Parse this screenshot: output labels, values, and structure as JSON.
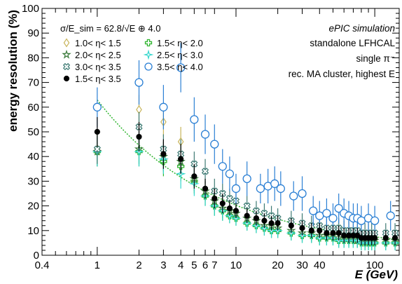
{
  "chart_data": {
    "type": "scatter",
    "xlabel": "E (GeV)",
    "ylabel": "energy resolution (%)",
    "xscale": "log",
    "xlim": [
      0.4,
      150
    ],
    "ylim": [
      0,
      100
    ],
    "xticks": [
      "0.4",
      "1",
      "2",
      "3",
      "4",
      "5",
      "6",
      "7",
      "10",
      "20",
      "30",
      "40",
      "100"
    ],
    "yticks": [
      "0",
      "10",
      "20",
      "30",
      "40",
      "50",
      "60",
      "70",
      "80",
      "90",
      "100"
    ],
    "fit_label": "σ/E_sim = 62.8/√E ⊕ 4.0",
    "annotations": [
      "ePIC simulation",
      "standalone LFHCAL",
      "single π⁻",
      "rec. MA cluster, highest E"
    ],
    "legend_position": "top-left",
    "series": [
      {
        "name": "1.0< η< 1.5",
        "color": "#c8b45a",
        "marker": "diamond-open",
        "x": [
          1,
          2,
          3,
          4
        ],
        "y": [
          43,
          59,
          54,
          46
        ],
        "err": [
          6,
          6,
          6,
          6
        ]
      },
      {
        "name": "1.5< η< 2.0",
        "color": "#2fb52f",
        "marker": "cross-open",
        "x": [
          1,
          2,
          3,
          4,
          5,
          6,
          7,
          8,
          9,
          10,
          12,
          14,
          16,
          18,
          20,
          25,
          30,
          35,
          40,
          45,
          50,
          55,
          60,
          65,
          70,
          75,
          80,
          85,
          90,
          95,
          100,
          120,
          140
        ],
        "y": [
          42,
          42,
          38,
          36,
          30,
          24,
          20,
          18,
          16,
          15,
          13,
          12,
          11,
          10,
          10,
          9,
          8,
          8,
          7,
          7,
          7,
          6,
          6,
          6,
          6,
          6,
          5,
          5,
          5,
          5,
          5,
          5,
          5
        ],
        "err": [
          6,
          6,
          6,
          6,
          5,
          4,
          4,
          4,
          3,
          3,
          3,
          3,
          3,
          3,
          3,
          3,
          3,
          3,
          3,
          3,
          3,
          3,
          3,
          3,
          3,
          3,
          3,
          3,
          3,
          3,
          3,
          3,
          3
        ]
      },
      {
        "name": "2.0< η< 2.5",
        "color": "#3a7a3a",
        "marker": "star-open",
        "x": [
          1,
          2,
          3,
          4,
          5,
          6,
          7,
          8,
          9,
          10,
          12,
          14,
          16,
          18,
          20,
          25,
          30,
          35,
          40,
          45,
          50,
          55,
          60,
          65,
          70,
          75,
          80,
          85,
          90,
          95,
          100,
          120,
          140
        ],
        "y": [
          42,
          43,
          40,
          38,
          31,
          26,
          22,
          19,
          18,
          17,
          15,
          14,
          12,
          12,
          11,
          10,
          9,
          9,
          8,
          8,
          8,
          7,
          7,
          7,
          7,
          6,
          6,
          6,
          6,
          6,
          6,
          6,
          6
        ],
        "err": [
          6,
          6,
          6,
          6,
          5,
          4,
          4,
          4,
          3,
          3,
          3,
          3,
          3,
          3,
          3,
          3,
          3,
          3,
          3,
          3,
          3,
          3,
          3,
          3,
          3,
          3,
          3,
          3,
          3,
          3,
          3,
          3,
          3
        ]
      },
      {
        "name": "2.5< η< 3.0",
        "color": "#33d6cc",
        "marker": "star4-open",
        "x": [
          1,
          2,
          3,
          4,
          5,
          6,
          7,
          8,
          9,
          10,
          12,
          14,
          16,
          18,
          20,
          25,
          30,
          35,
          40,
          45,
          50,
          55,
          60,
          65,
          70,
          75,
          80,
          85,
          90,
          95,
          100,
          120,
          140
        ],
        "y": [
          42,
          42,
          39,
          33,
          29,
          24,
          20,
          18,
          16,
          15,
          13,
          12,
          11,
          10,
          10,
          9,
          8,
          8,
          7,
          7,
          7,
          6,
          6,
          6,
          6,
          6,
          5,
          5,
          5,
          5,
          5,
          5,
          5
        ],
        "err": [
          6,
          6,
          6,
          6,
          5,
          4,
          4,
          4,
          3,
          3,
          3,
          3,
          3,
          3,
          3,
          3,
          3,
          3,
          3,
          3,
          3,
          3,
          3,
          3,
          3,
          3,
          3,
          3,
          3,
          3,
          3,
          3,
          3
        ]
      },
      {
        "name": "3.0< η< 3.5",
        "color": "#3d7a73",
        "marker": "x-open",
        "x": [
          1,
          2,
          3,
          4,
          5,
          6,
          7,
          8,
          9,
          10,
          12,
          14,
          16,
          18,
          20,
          25,
          30,
          35,
          40,
          45,
          50,
          55,
          60,
          65,
          70,
          75,
          80,
          85,
          90,
          95,
          100,
          120,
          140
        ],
        "y": [
          43,
          52,
          43,
          41,
          37,
          34,
          26,
          25,
          23,
          22,
          20,
          18,
          17,
          16,
          15,
          14,
          13,
          12,
          12,
          11,
          11,
          11,
          10,
          10,
          10,
          10,
          9,
          9,
          9,
          9,
          9,
          9,
          9
        ],
        "err": [
          6,
          6,
          6,
          6,
          5,
          5,
          5,
          4,
          4,
          4,
          4,
          4,
          4,
          4,
          4,
          4,
          4,
          4,
          4,
          4,
          4,
          4,
          4,
          4,
          4,
          4,
          4,
          4,
          4,
          4,
          4,
          4,
          4
        ]
      },
      {
        "name": "3.5< η< 4.0",
        "color": "#2a7fd4",
        "marker": "circle-open",
        "x": [
          1,
          2,
          3,
          4,
          5,
          6,
          7,
          8,
          9,
          10,
          12,
          15,
          17,
          19,
          21,
          26,
          30,
          36,
          40,
          45,
          50,
          55,
          60,
          65,
          70,
          75,
          80,
          90,
          100,
          130
        ],
        "y": [
          60,
          70,
          60,
          76,
          55,
          49,
          45,
          36,
          33,
          27,
          31,
          27,
          28,
          29,
          27,
          24,
          25,
          18,
          16,
          17,
          15,
          19,
          17,
          16,
          15,
          15,
          14,
          15,
          14,
          16
        ],
        "err": [
          8,
          9,
          9,
          10,
          9,
          8,
          8,
          7,
          7,
          6,
          7,
          6,
          7,
          7,
          7,
          6,
          7,
          6,
          6,
          6,
          6,
          6,
          6,
          6,
          6,
          6,
          6,
          6,
          6,
          6
        ]
      },
      {
        "name": "1.5< η< 3.5",
        "color": "#000000",
        "marker": "circle-filled",
        "x": [
          1,
          2,
          3,
          4,
          5,
          6,
          7,
          8,
          9,
          10,
          12,
          14,
          16,
          18,
          20,
          25,
          30,
          35,
          40,
          45,
          50,
          55,
          60,
          65,
          70,
          75,
          80,
          85,
          90,
          95,
          100,
          120,
          140
        ],
        "y": [
          50,
          48,
          41,
          39,
          32,
          27,
          23,
          21,
          19,
          18,
          16,
          15,
          14,
          13,
          13,
          12,
          11,
          10,
          10,
          9,
          9,
          9,
          8,
          8,
          8,
          8,
          7,
          7,
          7,
          7,
          7,
          7,
          7
        ],
        "err": [
          6,
          6,
          6,
          6,
          5,
          4,
          4,
          4,
          3,
          3,
          3,
          3,
          3,
          3,
          3,
          3,
          3,
          3,
          3,
          3,
          3,
          3,
          3,
          3,
          3,
          3,
          3,
          3,
          3,
          3,
          3,
          3,
          3
        ]
      }
    ]
  }
}
